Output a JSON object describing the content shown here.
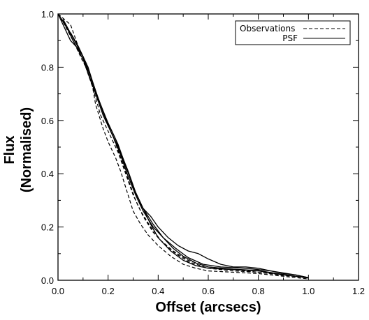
{
  "chart_data": {
    "type": "line",
    "xlabel": "Offset (arcsecs)",
    "ylabel_lines": [
      "Flux",
      "(Normalised)"
    ],
    "xlim": [
      0.0,
      1.2
    ],
    "ylim": [
      0.0,
      1.0
    ],
    "xticks": [
      "0.0",
      "0.2",
      "0.4",
      "0.6",
      "0.8",
      "1.0",
      "1.2"
    ],
    "yticks": [
      "0.0",
      "0.2",
      "0.4",
      "0.6",
      "0.8",
      "1.0"
    ],
    "legend": {
      "position": "top-right",
      "entries": [
        {
          "label": "Observations",
          "style": "dashed"
        },
        {
          "label": "PSF",
          "style": "solid"
        }
      ]
    },
    "series": [
      {
        "name": "Observations",
        "style": "dashed",
        "points": [
          [
            0.0,
            1.0
          ],
          [
            0.04,
            0.94
          ],
          [
            0.08,
            0.86
          ],
          [
            0.1,
            0.82
          ],
          [
            0.13,
            0.77
          ],
          [
            0.15,
            0.66
          ],
          [
            0.18,
            0.57
          ],
          [
            0.2,
            0.52
          ],
          [
            0.23,
            0.46
          ],
          [
            0.25,
            0.41
          ],
          [
            0.28,
            0.32
          ],
          [
            0.3,
            0.26
          ],
          [
            0.33,
            0.21
          ],
          [
            0.36,
            0.17
          ],
          [
            0.4,
            0.13
          ],
          [
            0.45,
            0.09
          ],
          [
            0.5,
            0.06
          ],
          [
            0.55,
            0.045
          ],
          [
            0.6,
            0.035
          ],
          [
            0.7,
            0.03
          ],
          [
            0.8,
            0.025
          ],
          [
            0.9,
            0.015
          ],
          [
            1.0,
            0.005
          ]
        ]
      },
      {
        "name": "Observations",
        "style": "dashed",
        "points": [
          [
            0.0,
            1.02
          ],
          [
            0.05,
            0.96
          ],
          [
            0.08,
            0.88
          ],
          [
            0.12,
            0.8
          ],
          [
            0.15,
            0.7
          ],
          [
            0.18,
            0.62
          ],
          [
            0.22,
            0.54
          ],
          [
            0.25,
            0.46
          ],
          [
            0.28,
            0.38
          ],
          [
            0.31,
            0.3
          ],
          [
            0.34,
            0.24
          ],
          [
            0.38,
            0.18
          ],
          [
            0.42,
            0.14
          ],
          [
            0.47,
            0.1
          ],
          [
            0.52,
            0.07
          ],
          [
            0.6,
            0.045
          ],
          [
            0.7,
            0.035
          ],
          [
            0.8,
            0.03
          ],
          [
            0.9,
            0.02
          ],
          [
            1.0,
            0.008
          ]
        ]
      },
      {
        "name": "Observations",
        "style": "dashed",
        "points": [
          [
            0.02,
            0.97
          ],
          [
            0.06,
            0.9
          ],
          [
            0.1,
            0.83
          ],
          [
            0.14,
            0.72
          ],
          [
            0.17,
            0.62
          ],
          [
            0.2,
            0.56
          ],
          [
            0.24,
            0.48
          ],
          [
            0.27,
            0.4
          ],
          [
            0.3,
            0.32
          ],
          [
            0.33,
            0.26
          ],
          [
            0.37,
            0.2
          ],
          [
            0.41,
            0.15
          ],
          [
            0.46,
            0.11
          ],
          [
            0.52,
            0.075
          ],
          [
            0.6,
            0.05
          ],
          [
            0.7,
            0.04
          ],
          [
            0.8,
            0.03
          ],
          [
            0.9,
            0.018
          ],
          [
            1.0,
            0.01
          ]
        ]
      },
      {
        "name": "PSF",
        "style": "solid",
        "points": [
          [
            0.0,
            1.02
          ],
          [
            0.03,
            0.96
          ],
          [
            0.06,
            0.9
          ],
          [
            0.1,
            0.83
          ],
          [
            0.13,
            0.75
          ],
          [
            0.17,
            0.66
          ],
          [
            0.2,
            0.59
          ],
          [
            0.24,
            0.51
          ],
          [
            0.27,
            0.43
          ],
          [
            0.3,
            0.35
          ],
          [
            0.34,
            0.27
          ],
          [
            0.37,
            0.21
          ],
          [
            0.4,
            0.16
          ],
          [
            0.45,
            0.11
          ],
          [
            0.5,
            0.075
          ],
          [
            0.55,
            0.055
          ],
          [
            0.6,
            0.045
          ],
          [
            0.7,
            0.04
          ],
          [
            0.8,
            0.035
          ],
          [
            0.9,
            0.02
          ],
          [
            1.0,
            0.01
          ]
        ]
      },
      {
        "name": "PSF",
        "style": "solid",
        "points": [
          [
            0.0,
            1.0
          ],
          [
            0.05,
            0.9
          ],
          [
            0.08,
            0.87
          ],
          [
            0.1,
            0.84
          ],
          [
            0.12,
            0.78
          ],
          [
            0.15,
            0.7
          ],
          [
            0.18,
            0.62
          ],
          [
            0.22,
            0.54
          ],
          [
            0.25,
            0.47
          ],
          [
            0.28,
            0.39
          ],
          [
            0.31,
            0.32
          ],
          [
            0.34,
            0.26
          ],
          [
            0.38,
            0.2
          ],
          [
            0.42,
            0.16
          ],
          [
            0.47,
            0.12
          ],
          [
            0.52,
            0.085
          ],
          [
            0.58,
            0.06
          ],
          [
            0.65,
            0.05
          ],
          [
            0.75,
            0.045
          ],
          [
            0.85,
            0.035
          ],
          [
            0.95,
            0.02
          ],
          [
            1.0,
            0.01
          ]
        ]
      },
      {
        "name": "PSF",
        "style": "solid",
        "points": [
          [
            0.05,
            0.93
          ],
          [
            0.08,
            0.88
          ],
          [
            0.12,
            0.8
          ],
          [
            0.15,
            0.71
          ],
          [
            0.19,
            0.61
          ],
          [
            0.23,
            0.53
          ],
          [
            0.26,
            0.45
          ],
          [
            0.29,
            0.38
          ],
          [
            0.32,
            0.3
          ],
          [
            0.34,
            0.27
          ],
          [
            0.37,
            0.24
          ],
          [
            0.4,
            0.2
          ],
          [
            0.44,
            0.16
          ],
          [
            0.48,
            0.13
          ],
          [
            0.52,
            0.11
          ],
          [
            0.56,
            0.1
          ],
          [
            0.6,
            0.08
          ],
          [
            0.65,
            0.06
          ],
          [
            0.7,
            0.05
          ],
          [
            0.75,
            0.05
          ],
          [
            0.8,
            0.045
          ],
          [
            0.85,
            0.035
          ],
          [
            0.9,
            0.025
          ],
          [
            0.95,
            0.02
          ],
          [
            1.0,
            0.01
          ]
        ]
      },
      {
        "name": "PSF",
        "style": "solid",
        "points": [
          [
            0.02,
            0.98
          ],
          [
            0.06,
            0.91
          ],
          [
            0.1,
            0.84
          ],
          [
            0.14,
            0.74
          ],
          [
            0.18,
            0.63
          ],
          [
            0.21,
            0.56
          ],
          [
            0.25,
            0.48
          ],
          [
            0.28,
            0.41
          ],
          [
            0.31,
            0.33
          ],
          [
            0.34,
            0.27
          ],
          [
            0.38,
            0.21
          ],
          [
            0.42,
            0.16
          ],
          [
            0.46,
            0.12
          ],
          [
            0.5,
            0.09
          ],
          [
            0.55,
            0.065
          ],
          [
            0.6,
            0.05
          ],
          [
            0.7,
            0.042
          ],
          [
            0.8,
            0.036
          ],
          [
            0.9,
            0.022
          ],
          [
            1.0,
            0.008
          ]
        ]
      }
    ]
  }
}
